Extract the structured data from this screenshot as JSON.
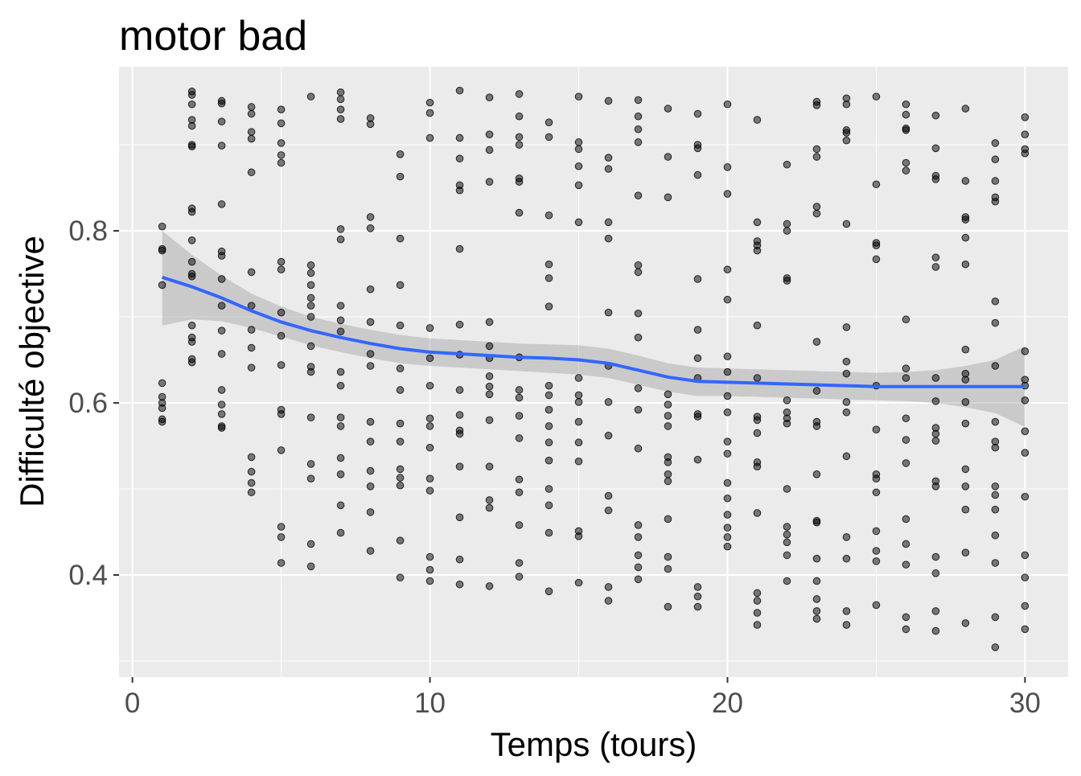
{
  "chart_data": {
    "type": "scatter",
    "title": "motor bad",
    "x_label": "Temps (tours)",
    "y_label": "Difficulté objective",
    "xlim": [
      -0.45,
      31.45
    ],
    "ylim": [
      0.2813,
      0.9907
    ],
    "xticks": [
      0,
      10,
      20,
      30
    ],
    "yticks": [
      0.4,
      0.6,
      0.8
    ],
    "xminor": [
      5,
      15,
      25
    ],
    "yminor": [
      0.3,
      0.5,
      0.7,
      0.9
    ],
    "grid": true,
    "point_color": "#000000",
    "point_opacity": 0.5,
    "panel_color": "#ebebeb",
    "points": [
      {
        "x": 1,
        "values": [
          0.805,
          0.779,
          0.777,
          0.737,
          0.623,
          0.607,
          0.6,
          0.594,
          0.581,
          0.578
        ]
      },
      {
        "x": 2,
        "values": [
          0.962,
          0.958,
          0.947,
          0.929,
          0.922,
          0.9,
          0.898,
          0.826,
          0.822,
          0.789,
          0.764,
          0.75,
          0.747,
          0.69,
          0.676,
          0.671,
          0.651,
          0.647
        ]
      },
      {
        "x": 3,
        "values": [
          0.951,
          0.948,
          0.927,
          0.899,
          0.831,
          0.776,
          0.771,
          0.744,
          0.713,
          0.684,
          0.657,
          0.615,
          0.598,
          0.587,
          0.573,
          0.571
        ]
      },
      {
        "x": 4,
        "values": [
          0.944,
          0.936,
          0.915,
          0.907,
          0.868,
          0.752,
          0.713,
          0.685,
          0.664,
          0.641,
          0.537,
          0.52,
          0.507,
          0.496
        ]
      },
      {
        "x": 5,
        "values": [
          0.941,
          0.925,
          0.902,
          0.888,
          0.879,
          0.764,
          0.755,
          0.705,
          0.678,
          0.644,
          0.592,
          0.587,
          0.545,
          0.456,
          0.444,
          0.414
        ]
      },
      {
        "x": 6,
        "values": [
          0.956,
          0.76,
          0.751,
          0.737,
          0.722,
          0.713,
          0.7,
          0.666,
          0.642,
          0.636,
          0.583,
          0.529,
          0.512,
          0.436,
          0.41
        ]
      },
      {
        "x": 7,
        "values": [
          0.961,
          0.953,
          0.941,
          0.93,
          0.802,
          0.79,
          0.713,
          0.696,
          0.683,
          0.636,
          0.62,
          0.583,
          0.573,
          0.536,
          0.517,
          0.481,
          0.449
        ]
      },
      {
        "x": 8,
        "values": [
          0.931,
          0.924,
          0.816,
          0.803,
          0.732,
          0.694,
          0.657,
          0.643,
          0.578,
          0.555,
          0.521,
          0.503,
          0.473,
          0.428
        ]
      },
      {
        "x": 9,
        "values": [
          0.889,
          0.863,
          0.791,
          0.737,
          0.69,
          0.64,
          0.615,
          0.576,
          0.555,
          0.523,
          0.513,
          0.504,
          0.44,
          0.397
        ]
      },
      {
        "x": 10,
        "values": [
          0.949,
          0.937,
          0.908,
          0.687,
          0.652,
          0.62,
          0.582,
          0.573,
          0.548,
          0.512,
          0.498,
          0.421,
          0.406,
          0.393
        ]
      },
      {
        "x": 11,
        "values": [
          0.963,
          0.908,
          0.884,
          0.853,
          0.847,
          0.779,
          0.691,
          0.656,
          0.615,
          0.586,
          0.568,
          0.564,
          0.526,
          0.467,
          0.418,
          0.389
        ]
      },
      {
        "x": 12,
        "values": [
          0.955,
          0.912,
          0.894,
          0.857,
          0.694,
          0.666,
          0.652,
          0.631,
          0.619,
          0.61,
          0.58,
          0.526,
          0.487,
          0.478,
          0.387
        ]
      },
      {
        "x": 13,
        "values": [
          0.959,
          0.933,
          0.909,
          0.9,
          0.861,
          0.857,
          0.821,
          0.653,
          0.615,
          0.606,
          0.585,
          0.559,
          0.511,
          0.496,
          0.458,
          0.414,
          0.398
        ]
      },
      {
        "x": 14,
        "values": [
          0.926,
          0.909,
          0.818,
          0.761,
          0.745,
          0.712,
          0.62,
          0.609,
          0.592,
          0.573,
          0.554,
          0.533,
          0.5,
          0.481,
          0.449,
          0.381
        ]
      },
      {
        "x": 15,
        "values": [
          0.956,
          0.903,
          0.895,
          0.875,
          0.853,
          0.81,
          0.629,
          0.609,
          0.601,
          0.578,
          0.554,
          0.532,
          0.451,
          0.445,
          0.391
        ]
      },
      {
        "x": 16,
        "values": [
          0.951,
          0.885,
          0.872,
          0.81,
          0.791,
          0.705,
          0.643,
          0.601,
          0.562,
          0.492,
          0.475,
          0.386,
          0.37
        ]
      },
      {
        "x": 17,
        "values": [
          0.952,
          0.933,
          0.918,
          0.903,
          0.841,
          0.76,
          0.752,
          0.704,
          0.676,
          0.617,
          0.592,
          0.547,
          0.458,
          0.444,
          0.423,
          0.409,
          0.395
        ]
      },
      {
        "x": 18,
        "values": [
          0.942,
          0.886,
          0.839,
          0.61,
          0.598,
          0.585,
          0.573,
          0.537,
          0.531,
          0.517,
          0.509,
          0.465,
          0.421,
          0.407,
          0.363
        ]
      },
      {
        "x": 19,
        "values": [
          0.936,
          0.9,
          0.896,
          0.865,
          0.744,
          0.685,
          0.652,
          0.629,
          0.587,
          0.584,
          0.534,
          0.386,
          0.375,
          0.363
        ]
      },
      {
        "x": 20,
        "values": [
          0.947,
          0.874,
          0.843,
          0.755,
          0.72,
          0.654,
          0.636,
          0.608,
          0.589,
          0.555,
          0.541,
          0.507,
          0.489,
          0.47,
          0.455,
          0.444,
          0.433
        ]
      },
      {
        "x": 21,
        "values": [
          0.929,
          0.81,
          0.788,
          0.783,
          0.777,
          0.69,
          0.629,
          0.584,
          0.58,
          0.565,
          0.531,
          0.526,
          0.472,
          0.379,
          0.37,
          0.356,
          0.342
        ]
      },
      {
        "x": 22,
        "values": [
          0.877,
          0.808,
          0.8,
          0.745,
          0.742,
          0.603,
          0.589,
          0.582,
          0.576,
          0.5,
          0.456,
          0.447,
          0.438,
          0.423,
          0.393
        ]
      },
      {
        "x": 23,
        "values": [
          0.95,
          0.946,
          0.895,
          0.886,
          0.828,
          0.82,
          0.671,
          0.614,
          0.578,
          0.573,
          0.517,
          0.463,
          0.461,
          0.419,
          0.393,
          0.372,
          0.358,
          0.349
        ]
      },
      {
        "x": 24,
        "values": [
          0.954,
          0.947,
          0.917,
          0.914,
          0.905,
          0.808,
          0.688,
          0.648,
          0.634,
          0.601,
          0.589,
          0.538,
          0.444,
          0.419,
          0.358,
          0.342
        ]
      },
      {
        "x": 25,
        "values": [
          0.956,
          0.854,
          0.786,
          0.783,
          0.767,
          0.62,
          0.569,
          0.517,
          0.512,
          0.496,
          0.451,
          0.428,
          0.416,
          0.365
        ]
      },
      {
        "x": 26,
        "values": [
          0.947,
          0.935,
          0.919,
          0.917,
          0.879,
          0.87,
          0.697,
          0.64,
          0.629,
          0.582,
          0.557,
          0.53,
          0.465,
          0.436,
          0.412,
          0.351,
          0.337
        ]
      },
      {
        "x": 27,
        "values": [
          0.934,
          0.896,
          0.864,
          0.86,
          0.769,
          0.758,
          0.629,
          0.602,
          0.571,
          0.564,
          0.556,
          0.509,
          0.503,
          0.421,
          0.402,
          0.358,
          0.335
        ]
      },
      {
        "x": 28,
        "values": [
          0.942,
          0.858,
          0.816,
          0.813,
          0.792,
          0.761,
          0.662,
          0.634,
          0.627,
          0.601,
          0.576,
          0.523,
          0.503,
          0.476,
          0.426,
          0.344
        ]
      },
      {
        "x": 29,
        "values": [
          0.902,
          0.883,
          0.858,
          0.839,
          0.834,
          0.718,
          0.693,
          0.643,
          0.578,
          0.555,
          0.548,
          0.503,
          0.493,
          0.476,
          0.446,
          0.414,
          0.351,
          0.316
        ]
      },
      {
        "x": 30,
        "values": [
          0.932,
          0.912,
          0.895,
          0.89,
          0.66,
          0.627,
          0.62,
          0.603,
          0.567,
          0.542,
          0.491,
          0.423,
          0.397,
          0.364,
          0.337
        ]
      }
    ],
    "smooth": {
      "color": "#3366ff",
      "band_color": "#999999",
      "x": [
        1,
        2,
        3,
        4,
        5,
        6,
        7,
        8,
        9,
        10,
        11,
        12,
        13,
        14,
        15,
        16,
        17,
        18,
        19,
        20,
        21,
        22,
        23,
        24,
        25,
        26,
        27,
        28,
        29,
        30
      ],
      "values": [
        0.746,
        0.735,
        0.722,
        0.707,
        0.694,
        0.684,
        0.676,
        0.669,
        0.663,
        0.659,
        0.657,
        0.655,
        0.653,
        0.652,
        0.65,
        0.646,
        0.638,
        0.63,
        0.625,
        0.624,
        0.623,
        0.622,
        0.621,
        0.62,
        0.619,
        0.619,
        0.619,
        0.619,
        0.619,
        0.619
      ],
      "lower": [
        0.69,
        0.697,
        0.695,
        0.687,
        0.677,
        0.667,
        0.659,
        0.652,
        0.646,
        0.643,
        0.641,
        0.639,
        0.637,
        0.635,
        0.633,
        0.629,
        0.621,
        0.613,
        0.608,
        0.608,
        0.607,
        0.606,
        0.605,
        0.604,
        0.603,
        0.602,
        0.6,
        0.595,
        0.588,
        0.572
      ],
      "upper": [
        0.8,
        0.772,
        0.748,
        0.727,
        0.712,
        0.7,
        0.692,
        0.685,
        0.679,
        0.675,
        0.673,
        0.671,
        0.669,
        0.668,
        0.667,
        0.663,
        0.655,
        0.646,
        0.641,
        0.64,
        0.639,
        0.638,
        0.637,
        0.636,
        0.635,
        0.636,
        0.638,
        0.643,
        0.65,
        0.666
      ]
    }
  }
}
